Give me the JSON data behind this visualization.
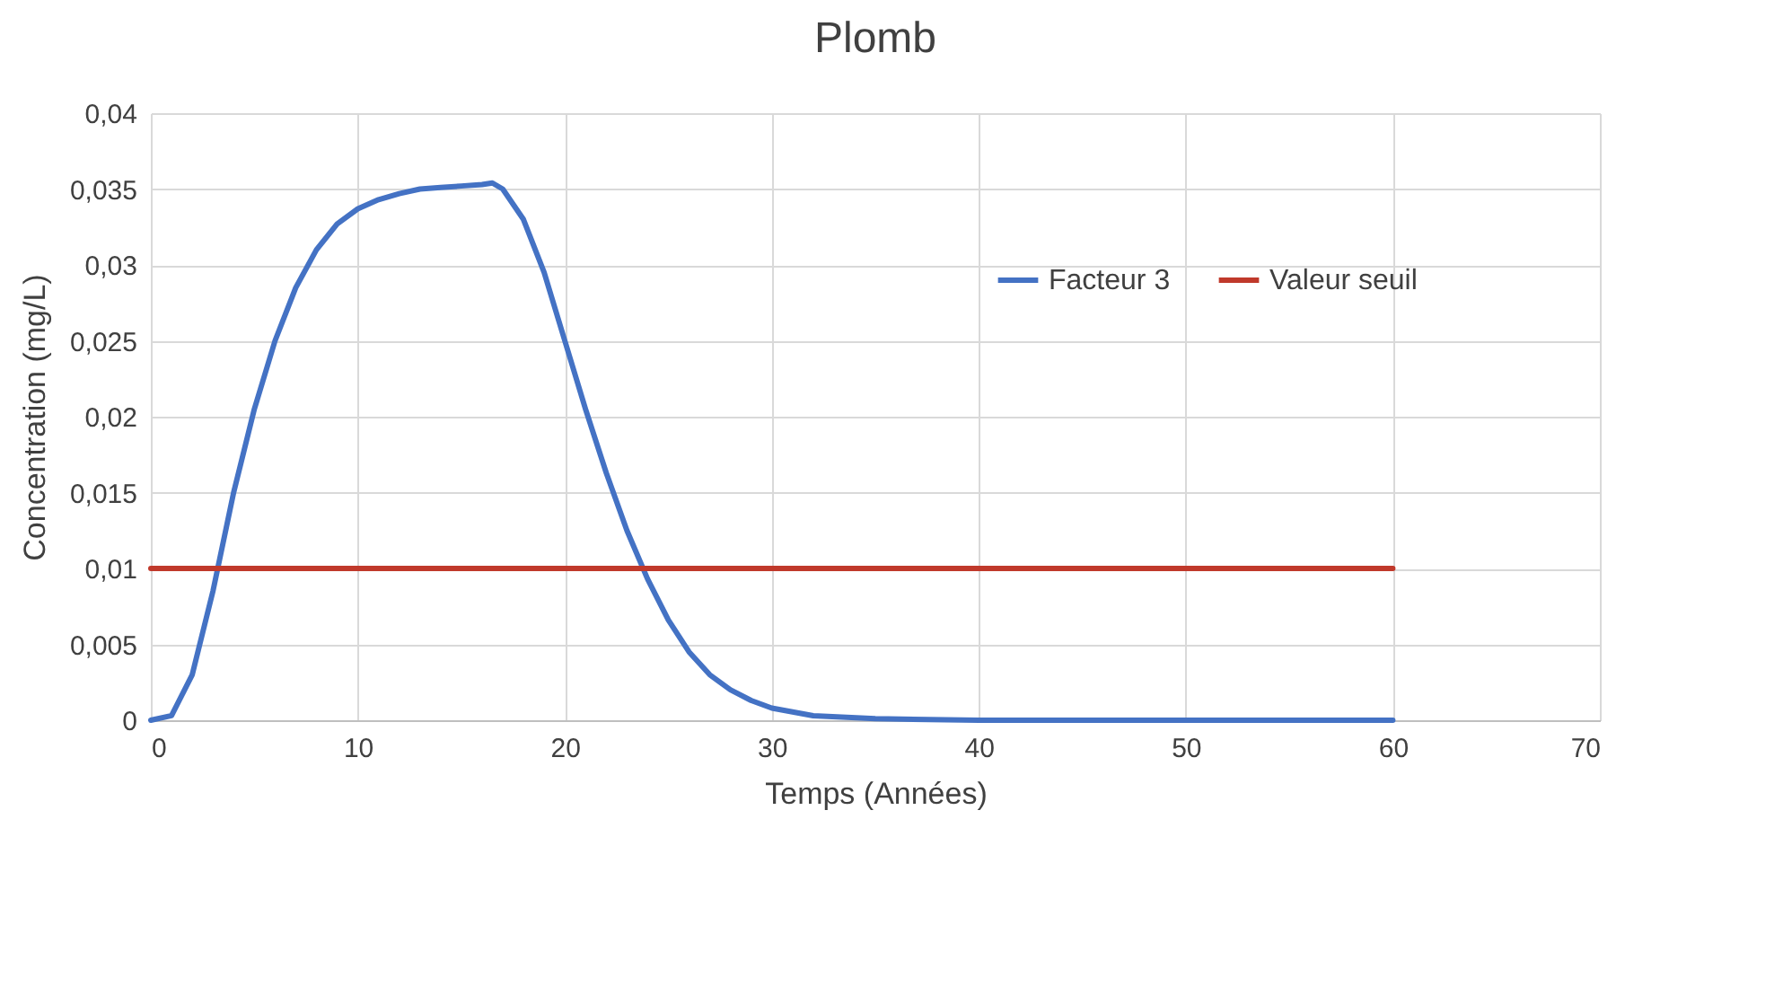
{
  "chart_data": {
    "type": "line",
    "title": "Plomb",
    "xlabel": "Temps (Années)",
    "ylabel": "Concentration (mg/L)",
    "xlim": [
      0,
      70
    ],
    "xticks": [
      0,
      10,
      20,
      30,
      40,
      50,
      60,
      70
    ],
    "ylim": [
      0,
      0.04
    ],
    "yticks": [
      0,
      {
        "value": 0.005,
        "label": "0,005"
      },
      {
        "value": 0.01,
        "label": "0,01"
      },
      {
        "value": 0.015,
        "label": "0,015"
      },
      {
        "value": 0.02,
        "label": "0,02"
      },
      {
        "value": 0.025,
        "label": "0,025"
      },
      {
        "value": 0.03,
        "label": "0,03"
      },
      {
        "value": 0.035,
        "label": "0,035"
      },
      {
        "value": 0.04,
        "label": "0,04"
      }
    ],
    "grid": true,
    "legend": "top right",
    "marker": "none",
    "line_style": "solid",
    "series": [
      {
        "name": "Facteur 3",
        "color": "#4472c4",
        "x": [
          0,
          1,
          2,
          3,
          4,
          5,
          6,
          7,
          8,
          9,
          10,
          11,
          12,
          13,
          14,
          15,
          16,
          16.5,
          17,
          18,
          19,
          20,
          21,
          22,
          23,
          24,
          25,
          26,
          27,
          28,
          29,
          30,
          32,
          35,
          40,
          50,
          60
        ],
        "values": [
          0,
          0.0003,
          0.003,
          0.0085,
          0.015,
          0.0205,
          0.025,
          0.0285,
          0.031,
          0.0327,
          0.0337,
          0.0343,
          0.0347,
          0.035,
          0.0351,
          0.0352,
          0.0353,
          0.0354,
          0.035,
          0.033,
          0.0295,
          0.025,
          0.0205,
          0.0163,
          0.0125,
          0.0093,
          0.0066,
          0.0045,
          0.003,
          0.002,
          0.0013,
          0.0008,
          0.0003,
          0.0001,
          0,
          0,
          0
        ]
      },
      {
        "name": "Valeur seuil",
        "color": "#c0392b",
        "x": [
          0,
          60
        ],
        "values": [
          0.01,
          0.01
        ]
      }
    ]
  }
}
